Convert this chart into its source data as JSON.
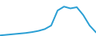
{
  "x": [
    0,
    1,
    2,
    3,
    4,
    5,
    6,
    7,
    8,
    9,
    10,
    11,
    12,
    13,
    14,
    15
  ],
  "y": [
    0.2,
    0.4,
    0.6,
    0.8,
    1.0,
    1.3,
    1.7,
    2.3,
    3.5,
    8.5,
    9.8,
    9.2,
    9.6,
    7.0,
    3.5,
    1.2
  ],
  "line_color": "#2a9fd4",
  "line_width": 1.4,
  "background_color": "#ffffff",
  "ylim": [
    0,
    12
  ],
  "xlim": [
    0,
    15
  ]
}
